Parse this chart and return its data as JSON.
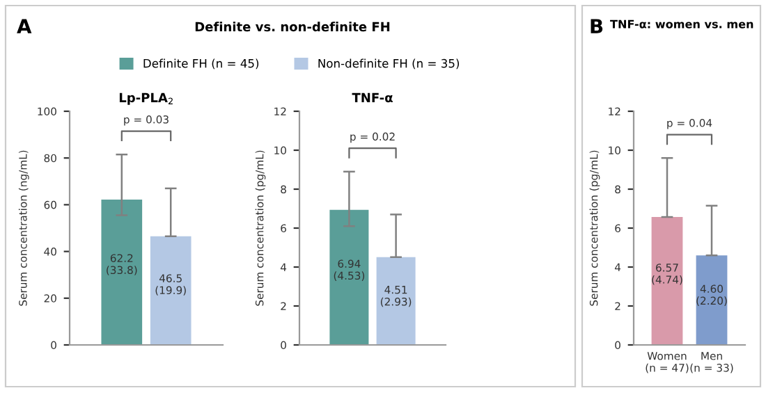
{
  "chart_data": [
    {
      "type": "bar",
      "title": "Lp-PLA$_{2}$",
      "ylabel": "Serum concentration (ng/mL)",
      "annotations": [
        "A",
        "Definite vs. non-definite FH",
        "p = 0.03"
      ],
      "legend": "top",
      "categories": [
        null
      ],
      "ylim": [
        0,
        100
      ],
      "yticks": [
        0,
        20,
        40,
        60,
        80,
        100
      ],
      "grid": false,
      "series": [
        {
          "name": "Definite FH (n = 45)",
          "color": "#5a9e98",
          "values": [
            62.2
          ],
          "errors": [
            [
              55.5,
              81.5
            ]
          ],
          "value_labels": [
            "62.2\n(33.8)"
          ]
        },
        {
          "name": "Non-definite FH (n = 35)",
          "color": "#b4c8e4",
          "values": [
            46.5
          ],
          "errors": [
            [
              46.5,
              67
            ]
          ],
          "value_labels": [
            "46.5\n(19.9)"
          ]
        }
      ]
    },
    {
      "type": "bar",
      "title": "TNF-α",
      "ylabel": "Serum concentration (pg/mL)",
      "annotations": [
        "p = 0.02"
      ],
      "categories": [
        null
      ],
      "ylim": [
        0,
        12
      ],
      "yticks": [
        0,
        2,
        4,
        6,
        8,
        10,
        12
      ],
      "grid": false,
      "series": [
        {
          "color": "#5a9e98",
          "values": [
            6.94
          ],
          "errors": [
            [
              6.1,
              8.9
            ]
          ],
          "value_labels": [
            "6.94\n(4.53)"
          ]
        },
        {
          "color": "#b4c8e4",
          "values": [
            4.51
          ],
          "errors": [
            [
              4.51,
              6.7
            ]
          ],
          "value_labels": [
            "4.51\n(2.93)"
          ]
        }
      ]
    },
    {
      "type": "bar",
      "title": "TNF-α: women vs. men",
      "ylabel": "Serum concentration (pg/mL)",
      "annotations": [
        "B",
        "p = 0.04"
      ],
      "categories": [
        "Women\n(n = 47)",
        "Men\n(n = 33)"
      ],
      "ylim": [
        0,
        12
      ],
      "yticks": [
        0,
        2,
        4,
        6,
        8,
        10,
        12
      ],
      "grid": false,
      "series": [
        {
          "colors": [
            "#d99aaa",
            "#7f9ccc"
          ],
          "values": [
            6.57,
            4.6
          ],
          "errors": [
            [
              6.57,
              9.6
            ],
            [
              4.6,
              7.15
            ]
          ],
          "value_labels": [
            "6.57\n(4.74)",
            "4.60\n(2.20)"
          ]
        }
      ]
    }
  ]
}
